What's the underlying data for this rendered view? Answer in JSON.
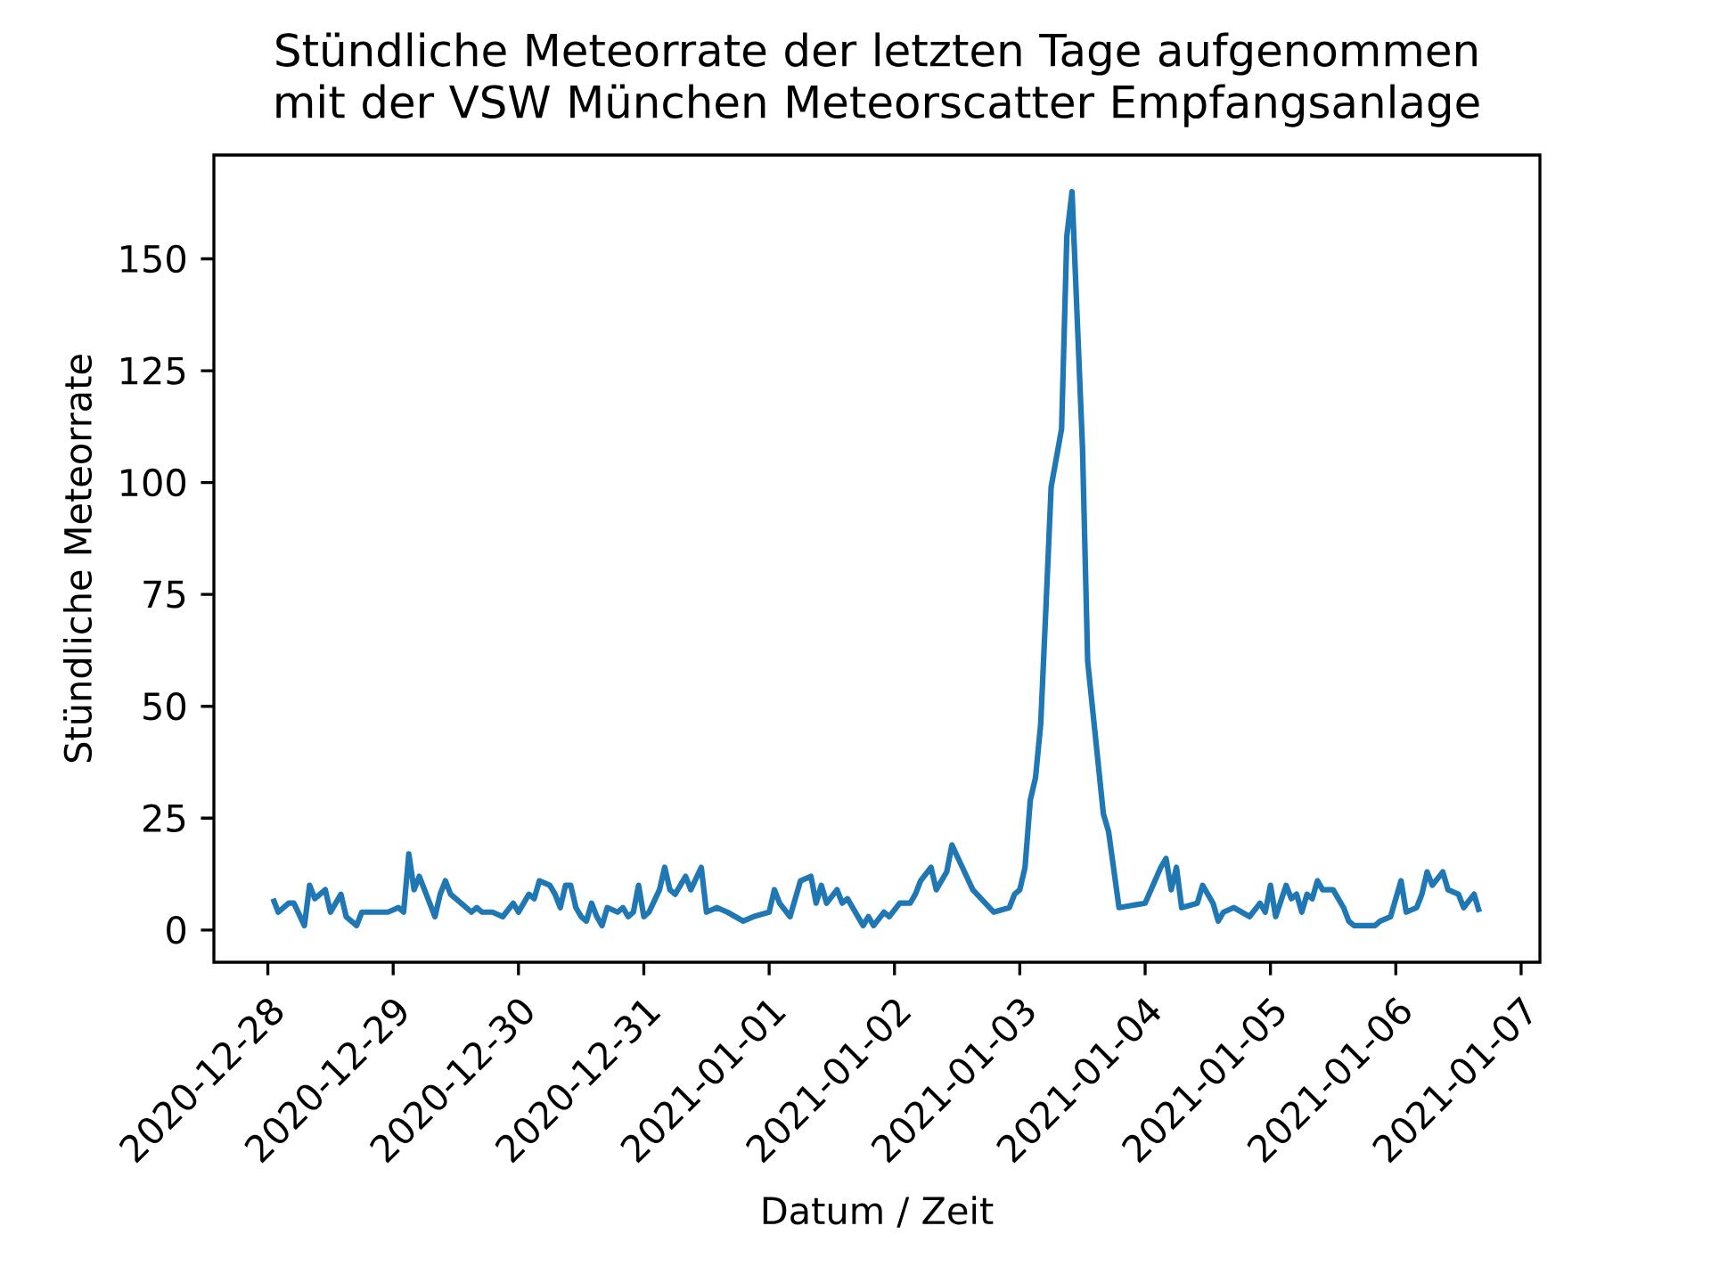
{
  "chart_data": {
    "type": "line",
    "title": "Stündliche Meteorrate der letzten Tage aufgenommen mit der VSW München Meteorscatter Empfangsanlage",
    "xlabel": "Datum / Zeit",
    "ylabel": "Stündliche Meteorrate",
    "x": [
      "2020-12-28T01:00",
      "2020-12-28T02:00",
      "2020-12-28T04:00",
      "2020-12-28T05:00",
      "2020-12-28T07:00",
      "2020-12-28T08:00",
      "2020-12-28T09:00",
      "2020-12-28T11:00",
      "2020-12-28T12:00",
      "2020-12-28T14:00",
      "2020-12-28T15:00",
      "2020-12-28T17:00",
      "2020-12-28T18:00",
      "2020-12-28T20:00",
      "2020-12-28T23:00",
      "2020-12-29T01:00",
      "2020-12-29T02:00",
      "2020-12-29T03:00",
      "2020-12-29T04:00",
      "2020-12-29T05:00",
      "2020-12-29T06:00",
      "2020-12-29T08:00",
      "2020-12-29T09:00",
      "2020-12-29T10:00",
      "2020-12-29T11:00",
      "2020-12-29T13:00",
      "2020-12-29T15:00",
      "2020-12-29T16:00",
      "2020-12-29T17:00",
      "2020-12-29T19:00",
      "2020-12-29T21:00",
      "2020-12-29T23:00",
      "2020-12-30T00:00",
      "2020-12-30T02:00",
      "2020-12-30T03:00",
      "2020-12-30T04:00",
      "2020-12-30T06:00",
      "2020-12-30T07:00",
      "2020-12-30T08:00",
      "2020-12-30T09:00",
      "2020-12-30T10:00",
      "2020-12-30T11:00",
      "2020-12-30T12:00",
      "2020-12-30T13:00",
      "2020-12-30T14:00",
      "2020-12-30T15:00",
      "2020-12-30T16:00",
      "2020-12-30T17:00",
      "2020-12-30T19:00",
      "2020-12-30T20:00",
      "2020-12-30T21:00",
      "2020-12-30T22:00",
      "2020-12-30T23:00",
      "2020-12-31T00:00",
      "2020-12-31T01:00",
      "2020-12-31T03:00",
      "2020-12-31T04:00",
      "2020-12-31T05:00",
      "2020-12-31T06:00",
      "2020-12-31T08:00",
      "2020-12-31T09:00",
      "2020-12-31T11:00",
      "2020-12-31T12:00",
      "2020-12-31T14:00",
      "2020-12-31T16:00",
      "2020-12-31T19:00",
      "2020-12-31T21:00",
      "2021-01-01T00:00",
      "2021-01-01T01:00",
      "2021-01-01T02:00",
      "2021-01-01T04:00",
      "2021-01-01T06:00",
      "2021-01-01T08:00",
      "2021-01-01T09:00",
      "2021-01-01T10:00",
      "2021-01-01T11:00",
      "2021-01-01T13:00",
      "2021-01-01T14:00",
      "2021-01-01T15:00",
      "2021-01-01T18:00",
      "2021-01-01T19:00",
      "2021-01-01T20:00",
      "2021-01-01T22:00",
      "2021-01-01T23:00",
      "2021-01-02T01:00",
      "2021-01-02T03:00",
      "2021-01-02T04:00",
      "2021-01-02T05:00",
      "2021-01-02T07:00",
      "2021-01-02T08:00",
      "2021-01-02T10:00",
      "2021-01-02T11:00",
      "2021-01-02T13:00",
      "2021-01-02T15:00",
      "2021-01-02T19:00",
      "2021-01-02T22:00",
      "2021-01-02T23:00",
      "2021-01-03T00:00",
      "2021-01-03T01:00",
      "2021-01-03T02:00",
      "2021-01-03T03:00",
      "2021-01-03T04:00",
      "2021-01-03T05:00",
      "2021-01-03T06:00",
      "2021-01-03T08:00",
      "2021-01-03T09:00",
      "2021-01-03T10:00",
      "2021-01-03T12:00",
      "2021-01-03T13:00",
      "2021-01-03T16:00",
      "2021-01-03T17:00",
      "2021-01-03T19:00",
      "2021-01-04T00:00",
      "2021-01-04T03:00",
      "2021-01-04T04:00",
      "2021-01-04T05:00",
      "2021-01-04T06:00",
      "2021-01-04T07:00",
      "2021-01-04T10:00",
      "2021-01-04T11:00",
      "2021-01-04T12:00",
      "2021-01-04T13:00",
      "2021-01-04T14:00",
      "2021-01-04T15:00",
      "2021-01-04T17:00",
      "2021-01-04T20:00",
      "2021-01-04T22:00",
      "2021-01-04T23:00",
      "2021-01-05T00:00",
      "2021-01-05T01:00",
      "2021-01-05T03:00",
      "2021-01-05T04:00",
      "2021-01-05T05:00",
      "2021-01-05T06:00",
      "2021-01-05T07:00",
      "2021-01-05T08:00",
      "2021-01-05T09:00",
      "2021-01-05T10:00",
      "2021-01-05T12:00",
      "2021-01-05T14:00",
      "2021-01-05T15:00",
      "2021-01-05T16:00",
      "2021-01-05T20:00",
      "2021-01-05T21:00",
      "2021-01-05T23:00",
      "2021-01-06T01:00",
      "2021-01-06T02:00",
      "2021-01-06T04:00",
      "2021-01-06T05:00",
      "2021-01-06T06:00",
      "2021-01-06T07:00",
      "2021-01-06T09:00",
      "2021-01-06T10:00",
      "2021-01-06T12:00",
      "2021-01-06T13:00",
      "2021-01-06T15:00",
      "2021-01-06T16:00"
    ],
    "values": [
      7,
      4,
      6,
      6,
      1,
      10,
      7,
      9,
      4,
      8,
      3,
      1,
      4,
      4,
      4,
      5,
      4,
      17,
      9,
      12,
      9,
      3,
      8,
      11,
      8,
      6,
      4,
      5,
      4,
      4,
      3,
      6,
      4,
      8,
      7,
      11,
      10,
      8,
      5,
      10,
      10,
      5,
      3,
      2,
      6,
      3,
      1,
      5,
      4,
      5,
      3,
      4,
      10,
      3,
      4,
      9,
      14,
      9,
      8,
      12,
      9,
      14,
      4,
      5,
      4,
      2,
      3,
      4,
      9,
      6,
      3,
      11,
      12,
      6,
      10,
      6,
      9,
      6,
      7,
      1,
      3,
      1,
      4,
      3,
      6,
      6,
      8,
      11,
      14,
      9,
      13,
      19,
      14,
      9,
      4,
      5,
      8,
      9,
      14,
      29,
      34,
      46,
      72,
      99,
      112,
      155,
      165,
      108,
      60,
      26,
      22,
      5,
      6,
      14,
      16,
      9,
      14,
      5,
      6,
      10,
      8,
      6,
      2,
      4,
      5,
      3,
      6,
      4,
      10,
      3,
      10,
      7,
      8,
      4,
      8,
      7,
      11,
      9,
      9,
      5,
      2,
      1,
      1,
      2,
      3,
      11,
      4,
      5,
      8,
      13,
      10,
      13,
      9,
      8,
      5,
      8,
      4
    ],
    "color": "#1f77b4",
    "xlim": [
      "2020-12-27T13:40",
      "2021-01-07T03:36"
    ],
    "ylim": [
      -7.2,
      173.2
    ],
    "xticks": [
      "2020-12-28",
      "2020-12-29",
      "2020-12-30",
      "2020-12-31",
      "2021-01-01",
      "2021-01-02",
      "2021-01-03",
      "2021-01-04",
      "2021-01-05",
      "2021-01-06",
      "2021-01-07"
    ],
    "yticks": [
      0,
      25,
      50,
      75,
      100,
      125,
      150
    ],
    "marker": "none",
    "line_style": "solid"
  }
}
